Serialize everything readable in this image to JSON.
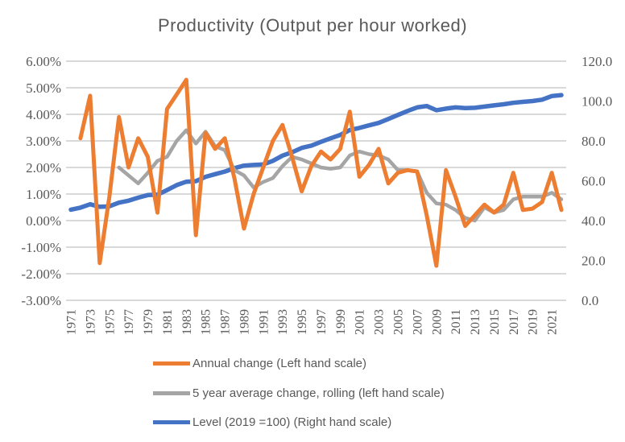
{
  "title": "Productivity (Output per hour worked)",
  "colors": {
    "annual_change": "#ED7D31",
    "rolling_average": "#A5A5A5",
    "level": "#4472C4",
    "text": "#595959",
    "gridline": "#D9D9D9",
    "background": "#FFFFFF"
  },
  "legend": [
    {
      "label": "Annual change (Left hand scale)",
      "color": "#ED7D31"
    },
    {
      "label": "5 year average change, rolling (left hand scale)",
      "color": "#A5A5A5"
    },
    {
      "label": "Level (2019 =100) (Right hand scale)",
      "color": "#4472C4"
    }
  ],
  "chart_data": {
    "type": "line",
    "title": "Productivity (Output per hour worked)",
    "x_start_year": 1971,
    "x_end_year": 2022,
    "grid": "horizontal",
    "legend_position": "bottom",
    "left_axis": {
      "unit": "percent",
      "min": -3,
      "max": 6,
      "tick_values": [
        6,
        5,
        4,
        3,
        2,
        1,
        0,
        -1,
        -2,
        -3
      ],
      "labels": [
        "6.00%",
        "5.00%",
        "4.00%",
        "3.00%",
        "2.00%",
        "1.00%",
        "0.00%",
        "-1.00%",
        "-2.00%",
        "-3.00%"
      ]
    },
    "right_axis": {
      "unit": "index (2019=100)",
      "min": 0,
      "max": 120,
      "tick_values": [
        120,
        100,
        80,
        60,
        40,
        20,
        0
      ],
      "labels": [
        "120.0",
        "100.0",
        "80.0",
        "60.0",
        "40.0",
        "20.0",
        "0.0"
      ]
    },
    "x_axis": {
      "tick_years": [
        1971,
        1973,
        1975,
        1977,
        1979,
        1981,
        1983,
        1985,
        1987,
        1989,
        1991,
        1993,
        1995,
        1997,
        1999,
        2001,
        2003,
        2005,
        2007,
        2009,
        2011,
        2013,
        2015,
        2017,
        2019,
        2021
      ]
    },
    "series": [
      {
        "name": "Annual change (Left hand scale)",
        "key": "annual_change",
        "axis": "left",
        "color": "#ED7D31",
        "stroke_width": 5,
        "start_year": 1972,
        "values": [
          3.1,
          4.7,
          -1.6,
          0.9,
          3.9,
          2.0,
          3.1,
          2.4,
          0.3,
          4.2,
          4.75,
          5.3,
          -0.55,
          3.3,
          2.7,
          3.1,
          1.6,
          -0.3,
          1.0,
          2.0,
          3.0,
          3.6,
          2.4,
          1.1,
          2.05,
          2.6,
          2.3,
          2.7,
          4.1,
          1.65,
          2.1,
          2.7,
          1.4,
          1.8,
          1.9,
          1.85,
          0.2,
          -1.7,
          1.9,
          0.9,
          -0.2,
          0.2,
          0.6,
          0.3,
          0.6,
          1.8,
          0.4,
          0.45,
          0.7,
          1.8,
          0.4
        ]
      },
      {
        "name": "5 year average change, rolling (left hand scale)",
        "key": "rolling_average",
        "axis": "left",
        "color": "#A5A5A5",
        "stroke_width": 4.5,
        "start_year": 1976,
        "values": [
          2.0,
          1.7,
          1.4,
          1.8,
          2.25,
          2.4,
          3.0,
          3.4,
          2.9,
          3.35,
          2.8,
          2.65,
          1.9,
          1.7,
          1.25,
          1.45,
          1.6,
          2.05,
          2.4,
          2.3,
          2.15,
          2.0,
          1.95,
          2.0,
          2.45,
          2.6,
          2.5,
          2.45,
          2.3,
          1.9,
          1.9,
          1.85,
          1.05,
          0.65,
          0.6,
          0.4,
          0.1,
          0.0,
          0.5,
          0.3,
          0.4,
          0.8,
          0.9,
          0.9,
          0.9,
          1.05,
          0.8
        ]
      },
      {
        "name": "Level (2019 =100) (Right hand scale)",
        "key": "level",
        "axis": "right",
        "color": "#4472C4",
        "stroke_width": 5.5,
        "start_year": 1971,
        "values": [
          45.5,
          46.5,
          48.2,
          46.9,
          47.2,
          49.0,
          50.0,
          51.5,
          52.8,
          53.0,
          55.3,
          57.8,
          59.5,
          59.8,
          62.0,
          63.3,
          64.6,
          66.3,
          67.6,
          67.9,
          68.2,
          70.0,
          72.6,
          74.3,
          76.5,
          77.6,
          79.5,
          81.3,
          83.0,
          85.4,
          86.5,
          87.8,
          89.0,
          91.0,
          93.0,
          95.0,
          96.8,
          97.5,
          95.4,
          96.2,
          96.8,
          96.5,
          96.6,
          97.2,
          97.8,
          98.4,
          99.1,
          99.6,
          100.0,
          100.7,
          102.5,
          103.0
        ]
      }
    ]
  }
}
